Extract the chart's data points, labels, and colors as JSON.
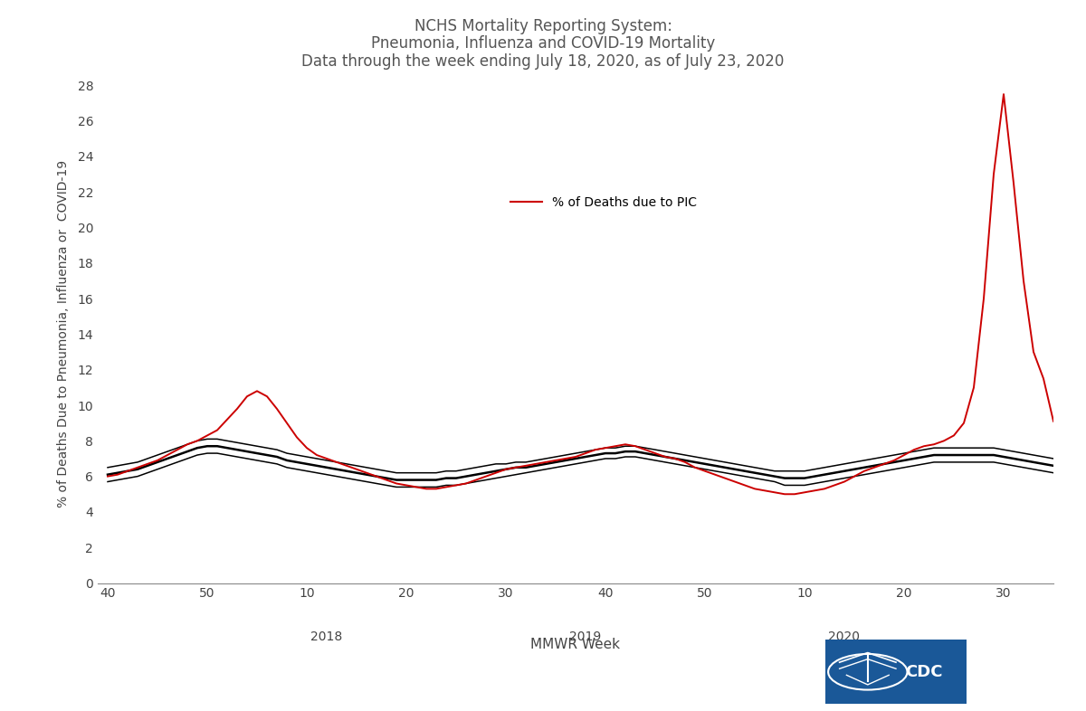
{
  "title_line1": "NCHS Mortality Reporting System:",
  "title_line2": "Pneumonia, Influenza and COVID-19 Mortality",
  "title_line3": "Data through the week ending July 18, 2020, as of July 23, 2020",
  "xlabel": "MMWR Week",
  "ylabel": "% of Deaths Due to Pneumonia, Influenza or  COVID-19",
  "ylim": [
    0,
    28
  ],
  "yticks": [
    0,
    2,
    4,
    6,
    8,
    10,
    12,
    14,
    16,
    18,
    20,
    22,
    24,
    26,
    28
  ],
  "background_color": "#ffffff",
  "title_color": "#555555",
  "axis_color": "#444444",
  "pic_color": "#cc0000",
  "legend_label": "% of Deaths due to PIC",
  "year_labels": [
    "2018",
    "2019",
    "2020"
  ],
  "tick_labels": [
    40,
    50,
    10,
    20,
    30,
    40,
    50,
    10,
    20,
    30,
    40,
    50,
    10,
    20,
    30
  ],
  "pic_y": [
    6.0,
    6.1,
    6.3,
    6.5,
    6.7,
    6.9,
    7.2,
    7.5,
    7.8,
    8.0,
    8.3,
    8.6,
    9.2,
    9.8,
    10.5,
    10.8,
    10.5,
    9.8,
    9.0,
    8.2,
    7.6,
    7.2,
    7.0,
    6.8,
    6.6,
    6.4,
    6.2,
    6.0,
    5.8,
    5.6,
    5.5,
    5.4,
    5.3,
    5.3,
    5.4,
    5.5,
    5.6,
    5.8,
    6.0,
    6.2,
    6.4,
    6.5,
    6.6,
    6.7,
    6.8,
    6.9,
    7.0,
    7.1,
    7.3,
    7.5,
    7.6,
    7.7,
    7.8,
    7.7,
    7.5,
    7.3,
    7.1,
    7.0,
    6.8,
    6.5,
    6.3,
    6.1,
    5.9,
    5.7,
    5.5,
    5.3,
    5.2,
    5.1,
    5.0,
    5.0,
    5.1,
    5.2,
    5.3,
    5.5,
    5.7,
    6.0,
    6.3,
    6.5,
    6.7,
    6.9,
    7.2,
    7.5,
    7.7,
    7.8,
    8.0,
    8.3,
    9.0,
    11.0,
    16.0,
    23.0,
    27.5,
    22.5,
    17.0,
    13.0,
    11.5,
    9.1
  ],
  "thresh_upper_y": [
    6.5,
    6.6,
    6.7,
    6.8,
    7.0,
    7.2,
    7.4,
    7.6,
    7.8,
    8.0,
    8.1,
    8.1,
    8.0,
    7.9,
    7.8,
    7.7,
    7.6,
    7.5,
    7.3,
    7.2,
    7.1,
    7.0,
    6.9,
    6.8,
    6.7,
    6.6,
    6.5,
    6.4,
    6.3,
    6.2,
    6.2,
    6.2,
    6.2,
    6.2,
    6.3,
    6.3,
    6.4,
    6.5,
    6.6,
    6.7,
    6.7,
    6.8,
    6.8,
    6.9,
    7.0,
    7.1,
    7.2,
    7.3,
    7.4,
    7.5,
    7.6,
    7.6,
    7.7,
    7.7,
    7.6,
    7.5,
    7.4,
    7.3,
    7.2,
    7.1,
    7.0,
    6.9,
    6.8,
    6.7,
    6.6,
    6.5,
    6.4,
    6.3,
    6.3,
    6.3,
    6.3,
    6.4,
    6.5,
    6.6,
    6.7,
    6.8,
    6.9,
    7.0,
    7.1,
    7.2,
    7.3,
    7.4,
    7.5,
    7.6,
    7.6,
    7.6,
    7.6,
    7.6,
    7.6,
    7.6,
    7.5,
    7.4,
    7.3,
    7.2,
    7.1,
    7.0
  ],
  "thresh_mid_y": [
    6.1,
    6.2,
    6.3,
    6.4,
    6.6,
    6.8,
    7.0,
    7.2,
    7.4,
    7.6,
    7.7,
    7.7,
    7.6,
    7.5,
    7.4,
    7.3,
    7.2,
    7.1,
    6.9,
    6.8,
    6.7,
    6.6,
    6.5,
    6.4,
    6.3,
    6.2,
    6.1,
    6.0,
    5.9,
    5.8,
    5.8,
    5.8,
    5.8,
    5.8,
    5.9,
    5.9,
    6.0,
    6.1,
    6.2,
    6.3,
    6.4,
    6.5,
    6.5,
    6.6,
    6.7,
    6.8,
    6.9,
    7.0,
    7.1,
    7.2,
    7.3,
    7.3,
    7.4,
    7.4,
    7.3,
    7.2,
    7.1,
    7.0,
    6.9,
    6.8,
    6.7,
    6.6,
    6.5,
    6.4,
    6.3,
    6.2,
    6.1,
    6.0,
    5.9,
    5.9,
    5.9,
    6.0,
    6.1,
    6.2,
    6.3,
    6.4,
    6.5,
    6.6,
    6.7,
    6.8,
    6.9,
    7.0,
    7.1,
    7.2,
    7.2,
    7.2,
    7.2,
    7.2,
    7.2,
    7.2,
    7.1,
    7.0,
    6.9,
    6.8,
    6.7,
    6.6
  ],
  "thresh_lower_y": [
    5.7,
    5.8,
    5.9,
    6.0,
    6.2,
    6.4,
    6.6,
    6.8,
    7.0,
    7.2,
    7.3,
    7.3,
    7.2,
    7.1,
    7.0,
    6.9,
    6.8,
    6.7,
    6.5,
    6.4,
    6.3,
    6.2,
    6.1,
    6.0,
    5.9,
    5.8,
    5.7,
    5.6,
    5.5,
    5.4,
    5.4,
    5.4,
    5.4,
    5.4,
    5.5,
    5.5,
    5.6,
    5.7,
    5.8,
    5.9,
    6.0,
    6.1,
    6.2,
    6.3,
    6.4,
    6.5,
    6.6,
    6.7,
    6.8,
    6.9,
    7.0,
    7.0,
    7.1,
    7.1,
    7.0,
    6.9,
    6.8,
    6.7,
    6.6,
    6.5,
    6.4,
    6.3,
    6.2,
    6.1,
    6.0,
    5.9,
    5.8,
    5.7,
    5.5,
    5.5,
    5.5,
    5.6,
    5.7,
    5.8,
    5.9,
    6.0,
    6.1,
    6.2,
    6.3,
    6.4,
    6.5,
    6.6,
    6.7,
    6.8,
    6.8,
    6.8,
    6.8,
    6.8,
    6.8,
    6.8,
    6.7,
    6.6,
    6.5,
    6.4,
    6.3,
    6.2
  ]
}
